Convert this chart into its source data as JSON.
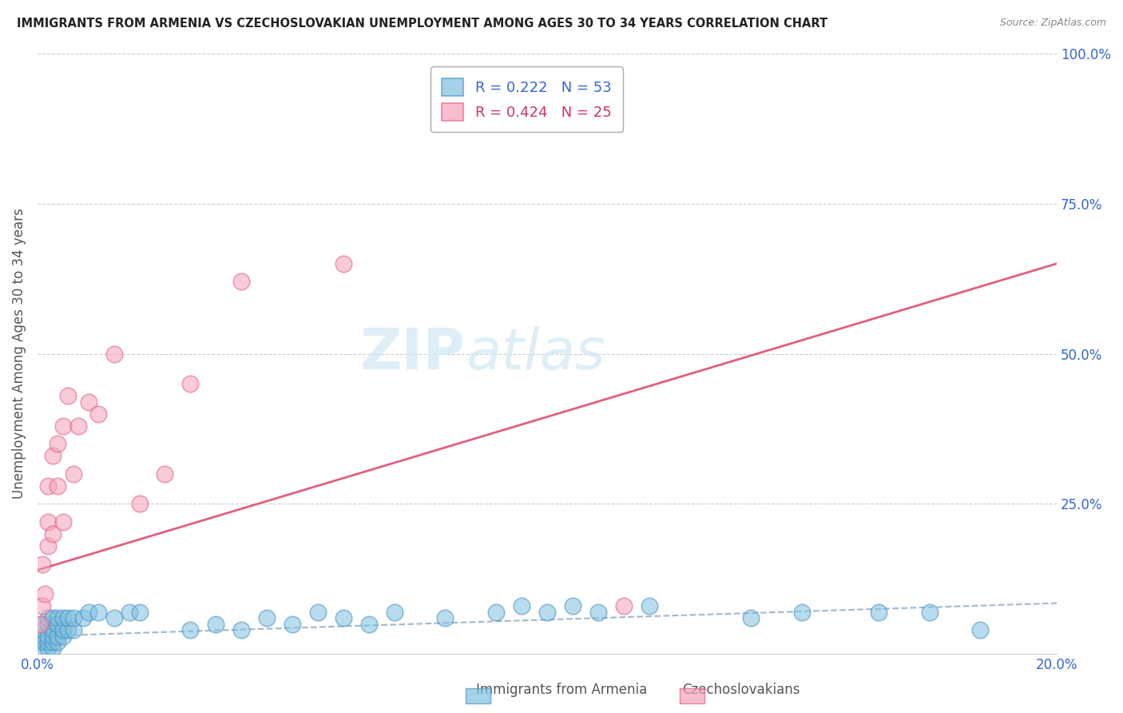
{
  "title": "IMMIGRANTS FROM ARMENIA VS CZECHOSLOVAKIAN UNEMPLOYMENT AMONG AGES 30 TO 34 YEARS CORRELATION CHART",
  "source": "Source: ZipAtlas.com",
  "ylabel": "Unemployment Among Ages 30 to 34 years",
  "xlim": [
    0.0,
    0.2
  ],
  "ylim": [
    0.0,
    1.0
  ],
  "ytick_positions": [
    0.0,
    0.25,
    0.5,
    0.75,
    1.0
  ],
  "ytick_labels": [
    "",
    "25.0%",
    "50.0%",
    "75.0%",
    "100.0%"
  ],
  "xtick_positions": [
    0.0,
    0.2
  ],
  "xtick_labels": [
    "0.0%",
    "20.0%"
  ],
  "blue_R": 0.222,
  "blue_N": 53,
  "pink_R": 0.424,
  "pink_N": 25,
  "blue_color": "#7fbfdf",
  "blue_edge": "#4a90c4",
  "pink_color": "#f5a0b8",
  "pink_edge": "#e06080",
  "trendline_blue_color": "#a0b8d0",
  "trendline_pink_color": "#e06080",
  "blue_label": "Immigrants from Armenia",
  "pink_label": "Czechoslovakians",
  "watermark_color": "#d0e8f5",
  "blue_x": [
    0.0005,
    0.001,
    0.001,
    0.001,
    0.0015,
    0.002,
    0.002,
    0.002,
    0.002,
    0.002,
    0.003,
    0.003,
    0.003,
    0.003,
    0.003,
    0.004,
    0.004,
    0.004,
    0.004,
    0.005,
    0.005,
    0.005,
    0.006,
    0.006,
    0.007,
    0.007,
    0.009,
    0.01,
    0.012,
    0.015,
    0.018,
    0.02,
    0.03,
    0.035,
    0.04,
    0.045,
    0.05,
    0.055,
    0.06,
    0.065,
    0.07,
    0.08,
    0.09,
    0.095,
    0.1,
    0.105,
    0.11,
    0.12,
    0.14,
    0.15,
    0.165,
    0.175,
    0.185
  ],
  "blue_y": [
    0.02,
    0.01,
    0.03,
    0.05,
    0.02,
    0.01,
    0.02,
    0.03,
    0.05,
    0.06,
    0.01,
    0.02,
    0.03,
    0.04,
    0.06,
    0.02,
    0.03,
    0.05,
    0.06,
    0.03,
    0.04,
    0.06,
    0.04,
    0.06,
    0.04,
    0.06,
    0.06,
    0.07,
    0.07,
    0.06,
    0.07,
    0.07,
    0.04,
    0.05,
    0.04,
    0.06,
    0.05,
    0.07,
    0.06,
    0.05,
    0.07,
    0.06,
    0.07,
    0.08,
    0.07,
    0.08,
    0.07,
    0.08,
    0.06,
    0.07,
    0.07,
    0.07,
    0.04
  ],
  "pink_x": [
    0.0005,
    0.001,
    0.001,
    0.0015,
    0.002,
    0.002,
    0.002,
    0.003,
    0.003,
    0.004,
    0.004,
    0.005,
    0.005,
    0.006,
    0.007,
    0.008,
    0.01,
    0.012,
    0.015,
    0.02,
    0.025,
    0.03,
    0.04,
    0.06,
    0.115
  ],
  "pink_y": [
    0.05,
    0.08,
    0.15,
    0.1,
    0.18,
    0.22,
    0.28,
    0.2,
    0.33,
    0.28,
    0.35,
    0.22,
    0.38,
    0.43,
    0.3,
    0.38,
    0.42,
    0.4,
    0.5,
    0.25,
    0.3,
    0.45,
    0.62,
    0.65,
    0.08
  ],
  "pink_trendline_x0": 0.0,
  "pink_trendline_y0": 0.14,
  "pink_trendline_x1": 0.2,
  "pink_trendline_y1": 0.65,
  "blue_trendline_x0": 0.0,
  "blue_trendline_y0": 0.03,
  "blue_trendline_x1": 0.2,
  "blue_trendline_y1": 0.085
}
